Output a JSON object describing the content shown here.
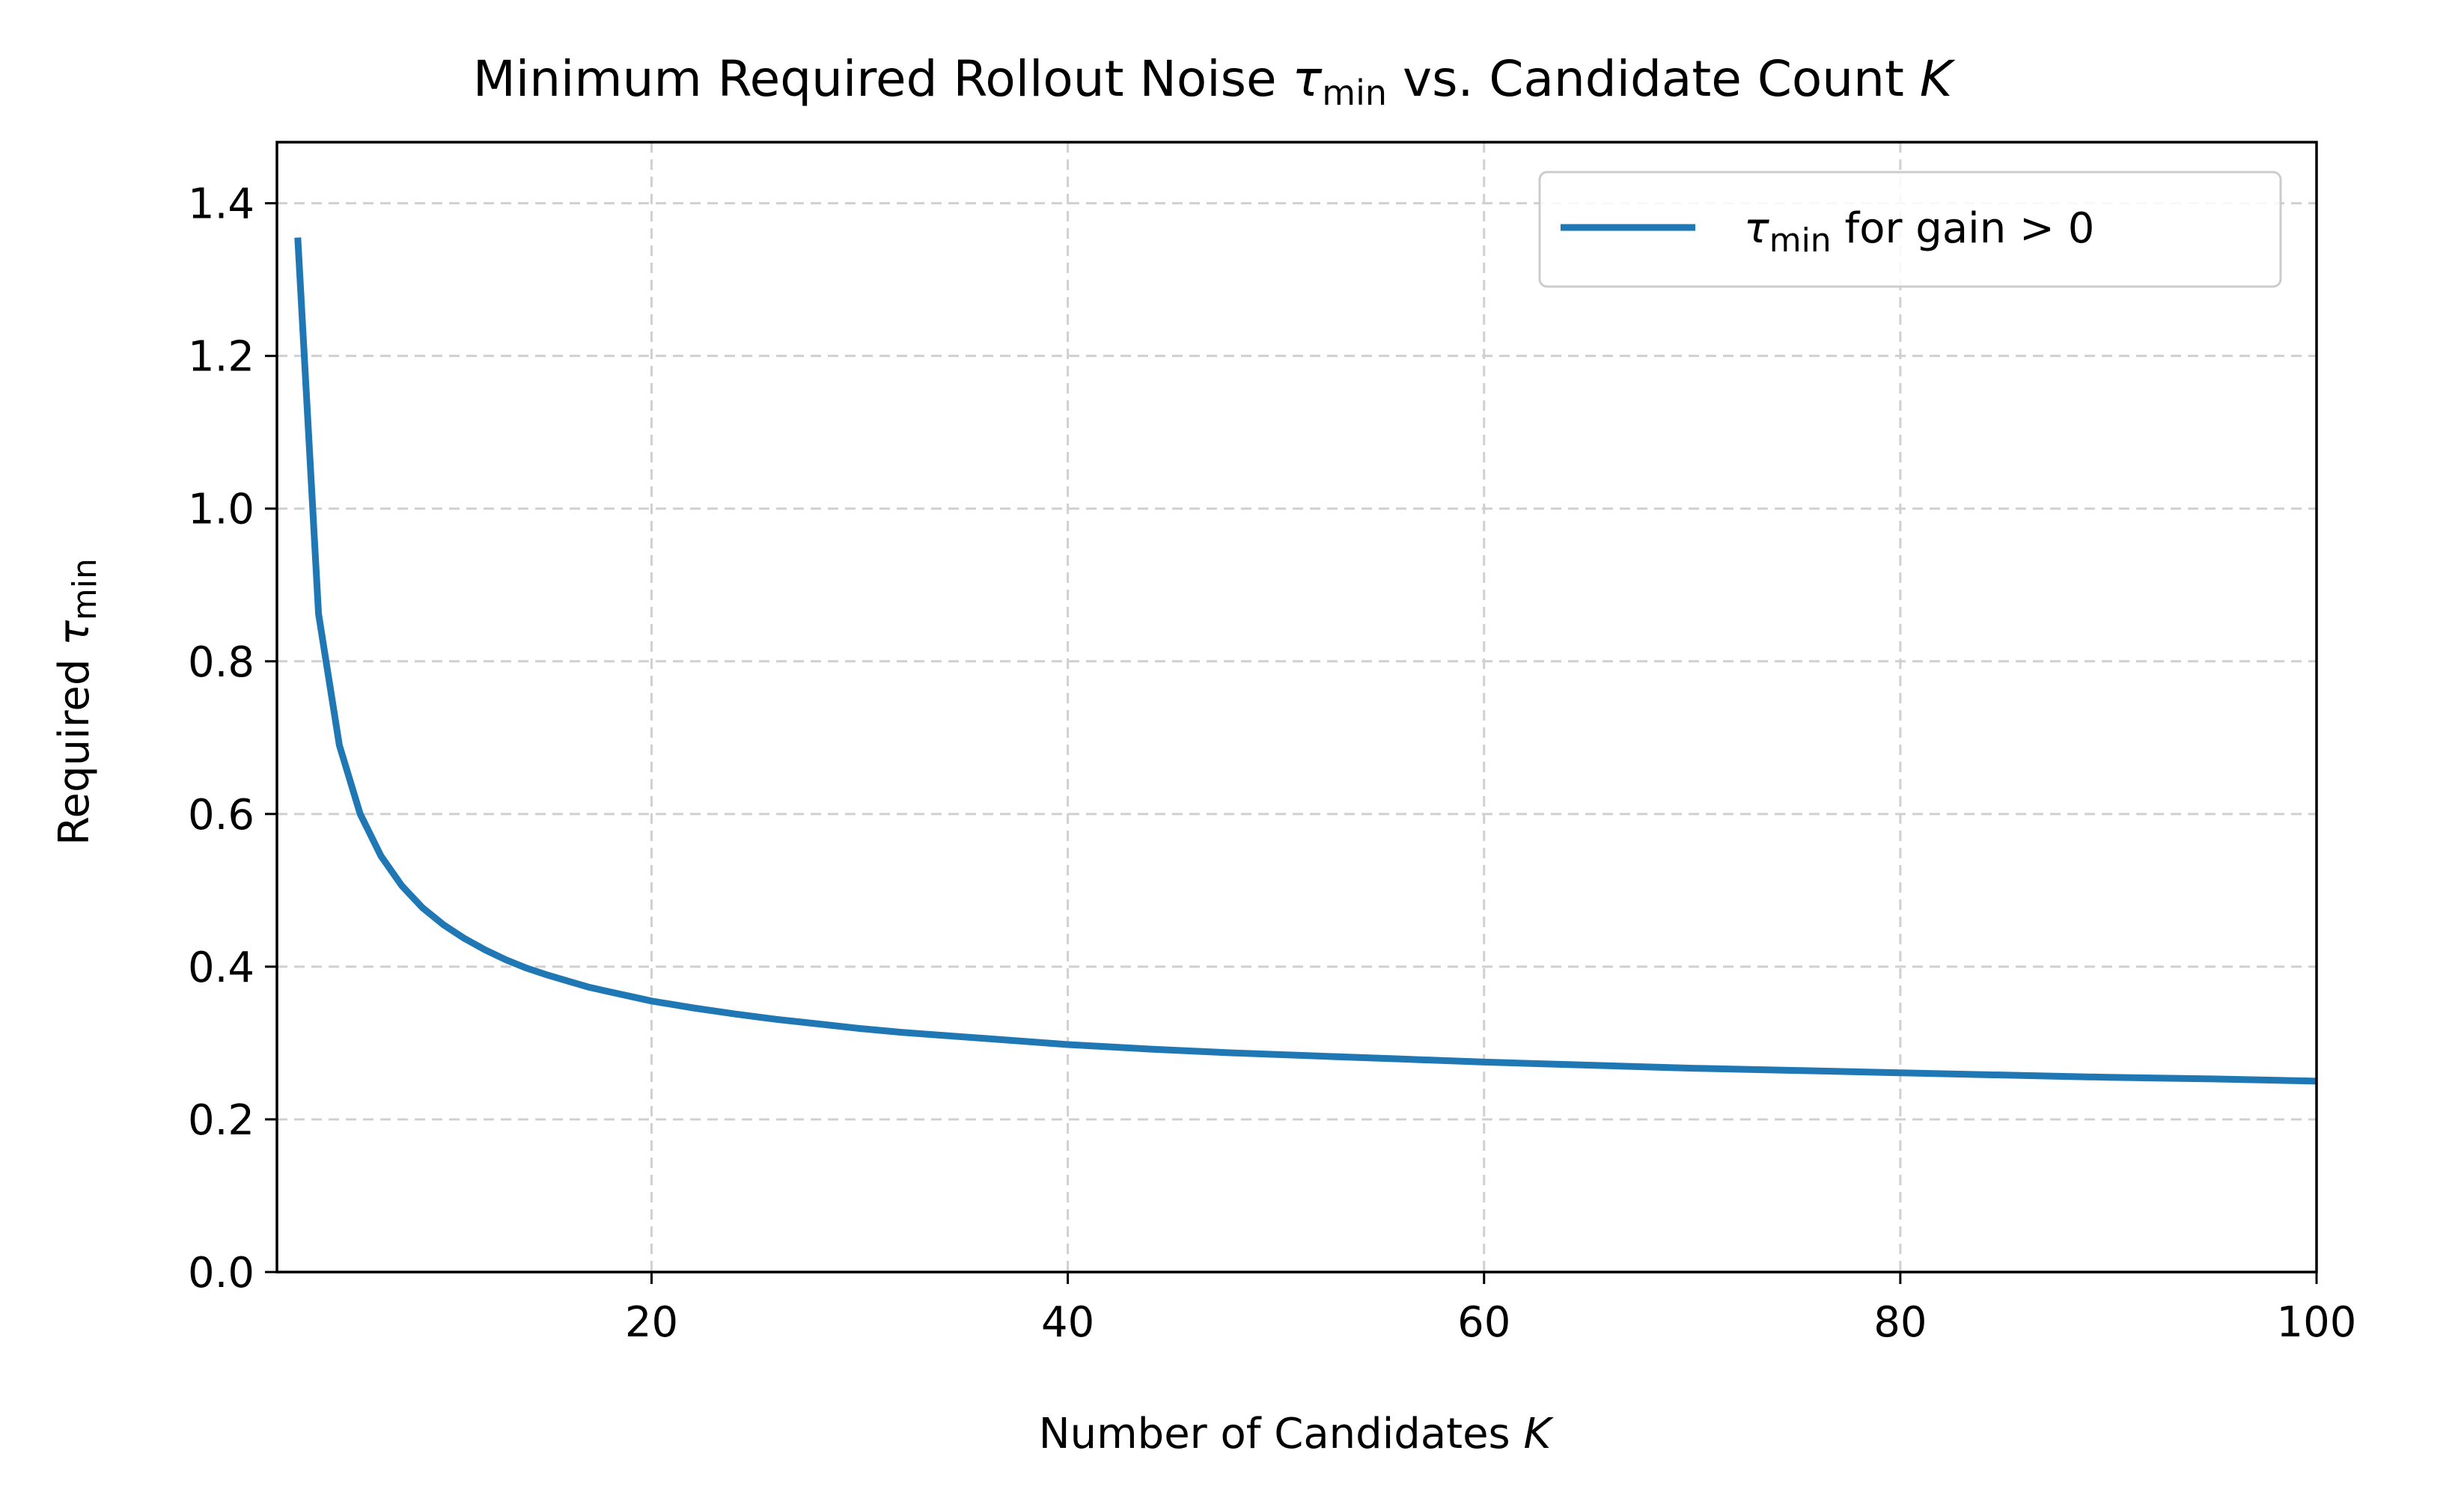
{
  "chart_data": {
    "type": "line",
    "title": "Minimum Required Rollout Noise τmin vs. Candidate Count K",
    "title_parts": {
      "before": "Minimum Required Rollout Noise ",
      "symbol": "τ",
      "subscript": "min",
      "after": " vs. Candidate Count ",
      "variable": "K"
    },
    "xlabel": "Number of Candidates K",
    "xlabel_parts": {
      "text": "Number of Candidates ",
      "variable": "K"
    },
    "ylabel": "Required τmin",
    "ylabel_parts": {
      "text": "Required ",
      "symbol": "τ",
      "subscript": "min"
    },
    "xlim": [
      2,
      100
    ],
    "ylim": [
      0.0,
      1.48
    ],
    "xticks": [
      20,
      40,
      60,
      80,
      100
    ],
    "xtick_labels": [
      "20",
      "40",
      "60",
      "80",
      "100"
    ],
    "yticks": [
      0.0,
      0.2,
      0.4,
      0.6,
      0.8,
      1.0,
      1.2,
      1.4
    ],
    "ytick_labels": [
      "0.0",
      "0.2",
      "0.4",
      "0.6",
      "0.8",
      "1.0",
      "1.2",
      "1.4"
    ],
    "grid": true,
    "legend_position": "top-right",
    "series": [
      {
        "name": "τmin for gain > 0",
        "name_parts": {
          "symbol": "τ",
          "subscript": "min",
          "text": " for gain ",
          "math": "> 0"
        },
        "color": "#1f77b4",
        "x": [
          3,
          4,
          5,
          6,
          7,
          8,
          9,
          10,
          11,
          12,
          13,
          14,
          15,
          16,
          17,
          18,
          19,
          20,
          22,
          24,
          26,
          28,
          30,
          32,
          34,
          36,
          38,
          40,
          44,
          48,
          52,
          56,
          60,
          65,
          70,
          75,
          80,
          85,
          90,
          95,
          100
        ],
        "y": [
          1.355,
          0.862,
          0.69,
          0.6,
          0.545,
          0.506,
          0.477,
          0.455,
          0.437,
          0.422,
          0.409,
          0.398,
          0.389,
          0.381,
          0.373,
          0.367,
          0.361,
          0.355,
          0.346,
          0.338,
          0.331,
          0.325,
          0.319,
          0.314,
          0.31,
          0.306,
          0.302,
          0.298,
          0.292,
          0.287,
          0.283,
          0.279,
          0.275,
          0.271,
          0.267,
          0.264,
          0.261,
          0.258,
          0.255,
          0.253,
          0.25
        ]
      }
    ]
  }
}
